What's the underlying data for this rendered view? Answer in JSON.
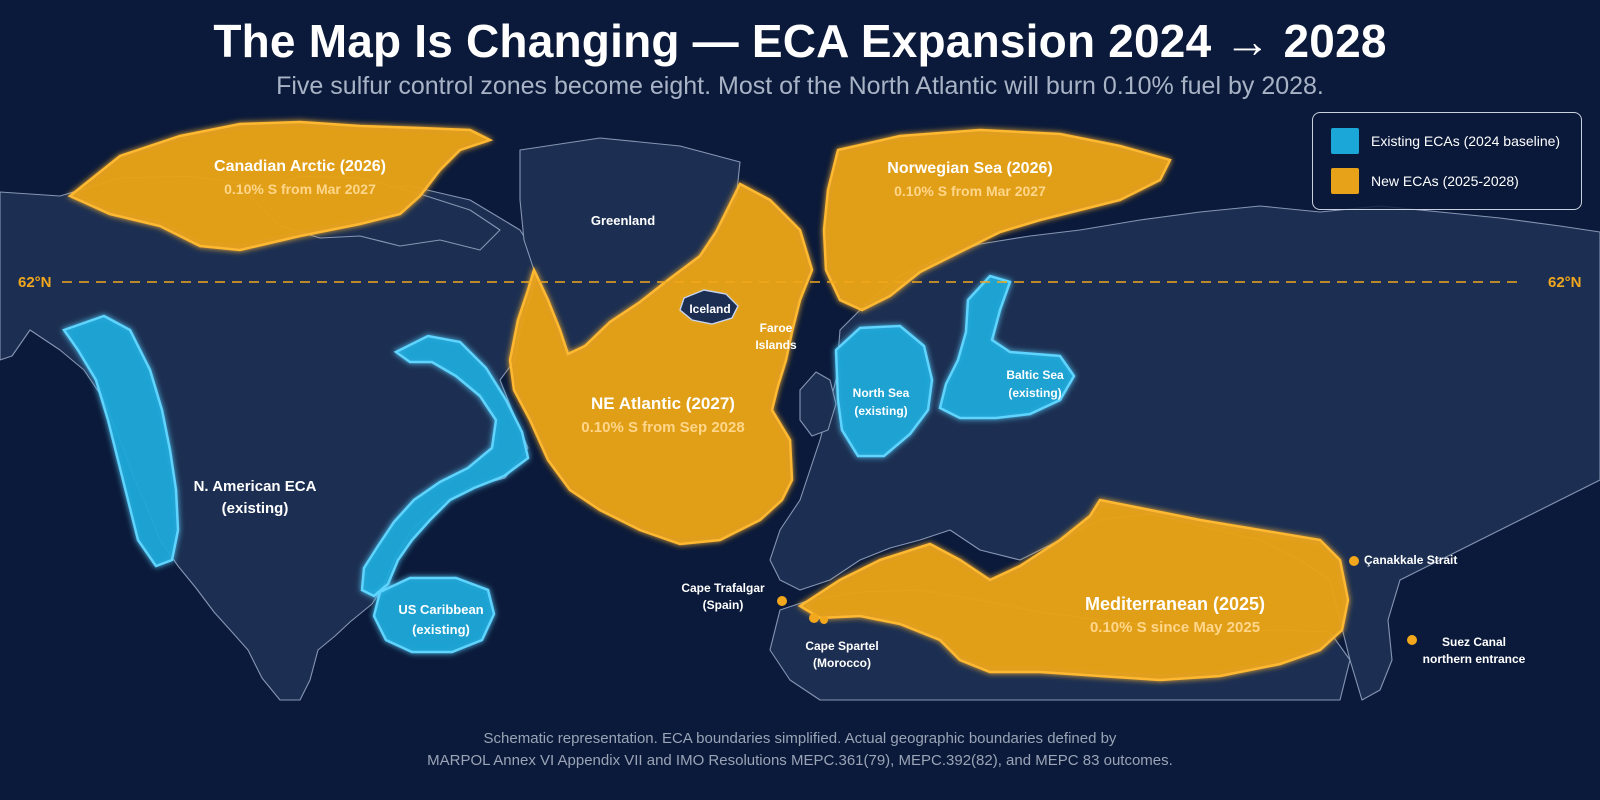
{
  "title": "The Map Is Changing — ECA Expansion 2024 → 2028",
  "subtitle": "Five sulfur control zones become eight. Most of the North Atlantic will burn 0.10% fuel by 2028.",
  "colors": {
    "background": "#0b1a3a",
    "land": "#1c2f52",
    "existing_eca": "#1ba8d8",
    "new_eca": "#e8a21a"
  },
  "legend": {
    "existing": "Existing ECAs (2024 baseline)",
    "new": "New ECAs (2025-2028)"
  },
  "latitude_line": {
    "label_left": "62°N",
    "label_right": "62°N"
  },
  "zones": {
    "canadian_arctic": {
      "name": "Canadian Arctic (2026)",
      "detail": "0.10% S from Mar 2027"
    },
    "norwegian_sea": {
      "name": "Norwegian Sea (2026)",
      "detail": "0.10% S from Mar 2027"
    },
    "ne_atlantic": {
      "name": "NE Atlantic (2027)",
      "detail": "0.10% S from Sep 2028"
    },
    "mediterranean": {
      "name": "Mediterranean (2025)",
      "detail": "0.10% S since May 2025"
    },
    "north_american": {
      "name": "N. American ECA",
      "detail": "(existing)"
    },
    "us_caribbean": {
      "name": "US Caribbean",
      "detail": "(existing)"
    },
    "north_sea": {
      "name": "North Sea",
      "detail": "(existing)"
    },
    "baltic_sea": {
      "name": "Baltic Sea",
      "detail": "(existing)"
    }
  },
  "places": {
    "greenland": "Greenland",
    "iceland": "Iceland",
    "faroe_1": "Faroe",
    "faroe_2": "Islands"
  },
  "points": {
    "cape_trafalgar": {
      "name": "Cape Trafalgar",
      "detail": "(Spain)"
    },
    "cape_spartel": {
      "name": "Cape Spartel",
      "detail": "(Morocco)"
    },
    "canakkale": {
      "name": "Çanakkale Strait"
    },
    "suez": {
      "name": "Suez Canal",
      "detail": "northern entrance"
    }
  },
  "footer": {
    "line1": "Schematic representation. ECA boundaries simplified.  Actual geographic boundaries defined by",
    "line2": "MARPOL Annex VI Appendix VII and IMO Resolutions MEPC.361(79), MEPC.392(82), and MEPC 83 outcomes."
  }
}
